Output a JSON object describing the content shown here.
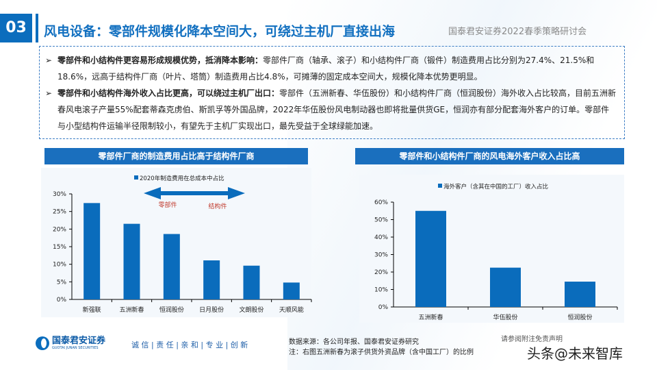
{
  "header": {
    "number": "03",
    "title": "风电设备：零部件规模化降本空间大，可绕过主机厂直接出海",
    "subtitle": "国泰君安证券2022春季策略研讨会"
  },
  "bullets": [
    {
      "bold": "零部件和小结构件更容易形成规模优势，抵消降本影响：",
      "text": "零部件厂商（轴承、滚子）和小结构件厂商（锻件）制造费用占比分别为27.4%、21.5%和18.6%，远高于结构件厂商（叶片、塔筒）制造费用占比4.8%，可摊薄的固定成本空间大，规模化降本优势更明显。"
    },
    {
      "bold": "零部件和小结构件海外收入占比更高，可以绕过主机厂出口：",
      "text": "零部件（五洲新春、华伍股份）和小结构件厂商（恒润股份）海外收入占比较高，目前五洲新春风电滚子产量55%配套蒂森克虏伯、斯凯孚等外国品牌，2022年华伍股份风电制动器也即将批量供货GE，恒润亦有部分配套海外客户的订单。零部件与小型结构件运输半径限制较小，有望先于主机厂实现出口，最先受益于全球绿能加速。"
    }
  ],
  "colors": {
    "accent": "#0b6dbd",
    "bar": "#0a6cbc",
    "annotation": "#c0392b"
  },
  "chart_data": [
    {
      "type": "bar",
      "panel_title": "零部件厂商的制造费用占比高于结构件厂商",
      "legend": "2020年制造费用在总成本中占比",
      "categories": [
        "新强联",
        "五洲新春",
        "恒润股份",
        "日月股份",
        "文朗股份",
        "天顺风能"
      ],
      "values": [
        27.4,
        21.5,
        18.6,
        11.1,
        9.6,
        4.8
      ],
      "unit": "%",
      "ylim": [
        0,
        30
      ],
      "yticks": [
        "0%",
        "5%",
        "10%",
        "15%",
        "20%",
        "25%",
        "30%"
      ],
      "annotations": [
        "零部件",
        "结构件"
      ],
      "legend_position": "top"
    },
    {
      "type": "bar",
      "panel_title": "零部件和小结构件厂商的风电海外客户收入占比高",
      "legend": "海外客户（含其在中国的工厂）收入占比",
      "categories": [
        "五洲新春",
        "华伍股份",
        "恒润股份"
      ],
      "values": [
        55,
        22.5,
        14.5
      ],
      "unit": "%",
      "ylim": [
        0,
        60
      ],
      "yticks": [
        "0%",
        "10%",
        "20%",
        "30%",
        "40%",
        "50%",
        "60%"
      ],
      "legend_position": "top"
    }
  ],
  "footer": {
    "logo_cn": "国泰君安证券",
    "logo_en": "GUOTAI JUNAN SECURITIES",
    "slogan": "诚 信 | 责 任 | 亲 和 | 专 业 | 创 新",
    "source": "数据来源：各公司年报、国泰君安证券研究",
    "note": "注：右图五洲新春为滚子供货外资品牌（含中国工厂）的比例",
    "disclaimer": "请参阅附注免责声明",
    "watermark": "头条@未来智库"
  }
}
